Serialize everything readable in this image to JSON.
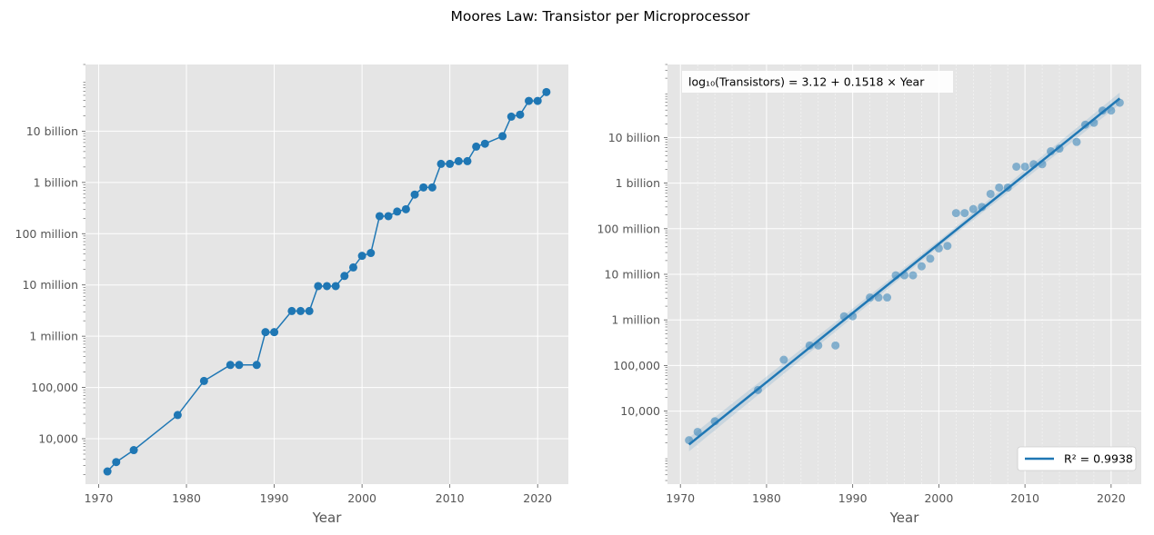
{
  "title": "Moores Law: Transistor per Microprocessor",
  "colors": {
    "series": "#1f77b4",
    "panel_bg": "#e5e5e5",
    "grid": "#ffffff",
    "tick_text": "#555555"
  },
  "chart_data": [
    {
      "type": "line",
      "xlabel": "Year",
      "ylabel": "",
      "x_scale": "linear",
      "y_scale": "log",
      "xlim": [
        1968.5,
        2023.5
      ],
      "ylim": [
        1300,
        200000000000
      ],
      "x_ticks": [
        1970,
        1980,
        1990,
        2000,
        2010,
        2020
      ],
      "x_tick_labels": [
        "1970",
        "1980",
        "1990",
        "2000",
        "2010",
        "2020"
      ],
      "y_ticks": [
        10000,
        100000,
        1000000,
        10000000,
        100000000,
        1000000000,
        10000000000
      ],
      "y_tick_labels": [
        "10,000",
        "100,000",
        "1 million",
        "10 million",
        "100 million",
        "1 billion",
        "10 billion"
      ],
      "grid": true,
      "markers": true,
      "series": [
        {
          "x": [
            1971,
            1972,
            1974,
            1979,
            1982,
            1985,
            1986,
            1988,
            1989,
            1990,
            1992,
            1993,
            1994,
            1995,
            1996,
            1997,
            1998,
            1999,
            2000,
            2001,
            2002,
            2003,
            2004,
            2005,
            2006,
            2007,
            2008,
            2009,
            2010,
            2011,
            2012,
            2013,
            2014,
            2016,
            2017,
            2018,
            2019,
            2020,
            2021
          ],
          "y": [
            2300,
            3500,
            6000,
            29000,
            134000,
            275000,
            275000,
            275000,
            1200000,
            1200000,
            3100000,
            3100000,
            3100000,
            9500000,
            9500000,
            9500000,
            15000000,
            22000000,
            37000000,
            42000000,
            220000000,
            220000000,
            270000000,
            300000000,
            580000000,
            800000000,
            800000000,
            2300000000,
            2300000000,
            2600000000,
            2600000000,
            5000000000,
            5700000000,
            8000000000,
            19200000000,
            21000000000,
            39000000000,
            39000000000,
            58000000000
          ]
        }
      ]
    },
    {
      "type": "scatter",
      "xlabel": "Year",
      "ylabel": "",
      "x_scale": "linear",
      "y_scale": "log",
      "xlim": [
        1968.5,
        2023.5
      ],
      "ylim": [
        250,
        400000000000
      ],
      "x_ticks": [
        1970,
        1980,
        1990,
        2000,
        2010,
        2020
      ],
      "x_tick_labels": [
        "1970",
        "1980",
        "1990",
        "2000",
        "2010",
        "2020"
      ],
      "y_ticks": [
        10000,
        100000,
        1000000,
        10000000,
        100000000,
        1000000000,
        10000000000
      ],
      "y_tick_labels": [
        "10,000",
        "100,000",
        "1 million",
        "10 million",
        "100 million",
        "1 billion",
        "10 billion"
      ],
      "grid": true,
      "annotation": "log₁₀(Transistors) = 3.12 + 0.1518 × Year",
      "legend": {
        "placement": "lower-right",
        "entries": [
          "R² = 0.9938"
        ]
      },
      "regression": {
        "intercept": 3.12,
        "slope": 0.1518,
        "r_squared": 0.9938,
        "x_range": [
          1971,
          2021
        ]
      },
      "series": [
        {
          "x": [
            1971,
            1972,
            1974,
            1979,
            1982,
            1985,
            1986,
            1988,
            1989,
            1990,
            1992,
            1993,
            1994,
            1995,
            1996,
            1997,
            1998,
            1999,
            2000,
            2001,
            2002,
            2003,
            2004,
            2005,
            2006,
            2007,
            2008,
            2009,
            2010,
            2011,
            2012,
            2013,
            2014,
            2016,
            2017,
            2018,
            2019,
            2020,
            2021
          ],
          "y": [
            2300,
            3500,
            6000,
            29000,
            134000,
            275000,
            275000,
            275000,
            1200000,
            1200000,
            3100000,
            3100000,
            3100000,
            9500000,
            9500000,
            9500000,
            15000000,
            22000000,
            37000000,
            42000000,
            220000000,
            220000000,
            270000000,
            300000000,
            580000000,
            800000000,
            800000000,
            2300000000,
            2300000000,
            2600000000,
            2600000000,
            5000000000,
            5700000000,
            8000000000,
            19200000000,
            21000000000,
            39000000000,
            39000000000,
            58000000000
          ]
        }
      ]
    }
  ]
}
